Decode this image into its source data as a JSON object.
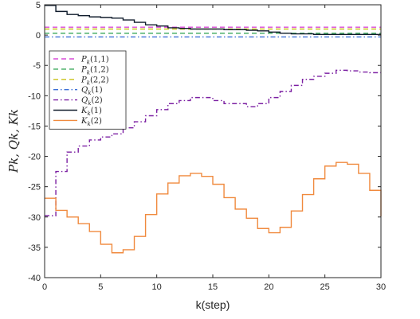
{
  "chart_data": {
    "type": "line",
    "style": "stairs",
    "xlabel": "k(step)",
    "ylabel": "P_k, Q_k, K_k",
    "ylabel_display": "Pk, Qk, Kk",
    "xlim": [
      0,
      30
    ],
    "ylim": [
      -40,
      5
    ],
    "xticks": [
      0,
      5,
      10,
      15,
      20,
      25,
      30
    ],
    "yticks": [
      5,
      0,
      -5,
      -10,
      -15,
      -20,
      -25,
      -30,
      -35,
      -40
    ],
    "grid": false,
    "legend_position": "top-left",
    "x": [
      0,
      1,
      2,
      3,
      4,
      5,
      6,
      7,
      8,
      9,
      10,
      11,
      12,
      13,
      14,
      15,
      16,
      17,
      18,
      19,
      20,
      21,
      22,
      23,
      24,
      25,
      26,
      27,
      28,
      29,
      30
    ],
    "series": [
      {
        "name": "P_k(1,1)",
        "label_base": "P",
        "label_sub": "k",
        "label_arg": "(1,1)",
        "color": "#d94bd9",
        "dash": "6,4",
        "values": [
          1.3,
          1.3,
          1.3,
          1.3,
          1.3,
          1.3,
          1.3,
          1.3,
          1.3,
          1.3,
          1.3,
          1.3,
          1.3,
          1.3,
          1.3,
          1.3,
          1.3,
          1.3,
          1.3,
          1.3,
          1.3,
          1.3,
          1.3,
          1.3,
          1.3,
          1.3,
          1.3,
          1.3,
          1.3,
          1.3,
          1.3
        ]
      },
      {
        "name": "P_k(1,2)",
        "label_base": "P",
        "label_sub": "k",
        "label_arg": "(1,2)",
        "color": "#3aa85a",
        "dash": "6,4",
        "values": [
          0.3,
          0.3,
          0.3,
          0.3,
          0.3,
          0.3,
          0.3,
          0.3,
          0.3,
          0.3,
          0.3,
          0.3,
          0.3,
          0.3,
          0.3,
          0.3,
          0.3,
          0.3,
          0.3,
          0.3,
          0.3,
          0.3,
          0.3,
          0.3,
          0.3,
          0.3,
          0.3,
          0.3,
          0.3,
          0.3,
          0.3
        ]
      },
      {
        "name": "P_k(2,2)",
        "label_base": "P",
        "label_sub": "k",
        "label_arg": "(2,2)",
        "color": "#c9c21a",
        "dash": "6,4",
        "values": [
          1.0,
          1.0,
          1.0,
          1.0,
          1.0,
          1.0,
          1.0,
          1.0,
          1.0,
          1.0,
          1.0,
          1.0,
          1.0,
          1.0,
          1.0,
          1.0,
          1.0,
          1.0,
          1.0,
          1.0,
          1.0,
          1.0,
          1.0,
          1.0,
          1.0,
          1.0,
          1.0,
          1.0,
          1.0,
          1.0,
          1.0
        ]
      },
      {
        "name": "Q_k(1)",
        "label_base": "Q",
        "label_sub": "k",
        "label_arg": "(1)",
        "color": "#3b6fd6",
        "dash": "6,3,1.5,3",
        "values": [
          -0.3,
          -0.3,
          -0.3,
          -0.3,
          -0.3,
          -0.3,
          -0.3,
          -0.3,
          -0.3,
          -0.3,
          -0.3,
          -0.3,
          -0.3,
          -0.3,
          -0.3,
          -0.3,
          -0.3,
          -0.3,
          -0.3,
          -0.3,
          -0.3,
          -0.3,
          -0.3,
          -0.3,
          -0.3,
          -0.3,
          -0.3,
          -0.3,
          -0.3,
          -0.3,
          -0.3
        ]
      },
      {
        "name": "Q_k(2)",
        "label_base": "Q",
        "label_sub": "k",
        "label_arg": "(2)",
        "color": "#7b1fa2",
        "dash": "6,3,1.5,3",
        "values": [
          -29.8,
          -22.5,
          -19.3,
          -18.3,
          -17.3,
          -16.8,
          -16.3,
          -15.3,
          -14.3,
          -13.3,
          -12.3,
          -11.3,
          -10.8,
          -10.3,
          -10.3,
          -10.8,
          -11.3,
          -11.3,
          -11.8,
          -11.3,
          -10.3,
          -9.3,
          -8.3,
          -7.3,
          -6.8,
          -6.3,
          -5.8,
          -5.9,
          -6.1,
          -6.2,
          -6.2
        ]
      },
      {
        "name": "K_k(1)",
        "label_base": "K",
        "label_sub": "k",
        "label_arg": "(1)",
        "color": "#101c2c",
        "dash": "",
        "values": [
          4.9,
          3.9,
          3.4,
          3.2,
          3.0,
          2.9,
          2.8,
          2.5,
          2.1,
          1.7,
          1.5,
          1.2,
          1.1,
          1.0,
          1.0,
          1.0,
          0.9,
          0.9,
          0.8,
          0.7,
          0.5,
          0.3,
          0.2,
          0.2,
          0.1,
          0.1,
          0.1,
          0.1,
          0.1,
          0.1,
          0.1
        ]
      },
      {
        "name": "K_k(2)",
        "label_base": "K",
        "label_sub": "k",
        "label_arg": "(2)",
        "color": "#f08a3e",
        "dash": "",
        "values": [
          -26.9,
          -28.9,
          -30.0,
          -31.1,
          -32.4,
          -34.5,
          -35.9,
          -35.4,
          -33.2,
          -29.6,
          -26.2,
          -24.4,
          -23.2,
          -22.8,
          -23.3,
          -24.6,
          -26.8,
          -28.7,
          -30.2,
          -31.9,
          -32.6,
          -31.7,
          -29.0,
          -26.3,
          -23.7,
          -21.6,
          -21.0,
          -21.3,
          -22.8,
          -25.6,
          -29.9
        ]
      }
    ]
  }
}
